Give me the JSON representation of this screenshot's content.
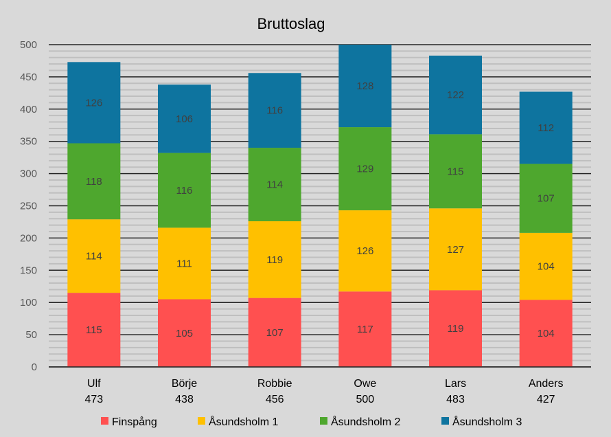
{
  "chart_data": {
    "type": "bar",
    "stacked": true,
    "title": "Bruttoslag",
    "xlabel": "",
    "ylabel": "",
    "ylim": [
      0,
      500
    ],
    "yticks": [
      0,
      50,
      100,
      150,
      200,
      250,
      300,
      350,
      400,
      450,
      500
    ],
    "minor_tick_step": 10,
    "grid": true,
    "legend_position": "bottom",
    "categories": [
      "Ulf",
      "Börje",
      "Robbie",
      "Owe",
      "Lars",
      "Anders"
    ],
    "totals": [
      "473",
      "438",
      "456",
      "500",
      "483",
      "427"
    ],
    "series": [
      {
        "name": "Finspång",
        "color": "#ff5050",
        "values": [
          115,
          105,
          107,
          117,
          119,
          104
        ]
      },
      {
        "name": "Åsundsholm 1",
        "color": "#ffc000",
        "values": [
          114,
          111,
          119,
          126,
          127,
          104
        ]
      },
      {
        "name": "Åsundsholm 2",
        "color": "#4ea72e",
        "values": [
          118,
          116,
          114,
          129,
          115,
          107
        ]
      },
      {
        "name": "Åsundsholm 3",
        "color": "#0e749f",
        "values": [
          126,
          106,
          116,
          128,
          122,
          112
        ]
      }
    ]
  }
}
